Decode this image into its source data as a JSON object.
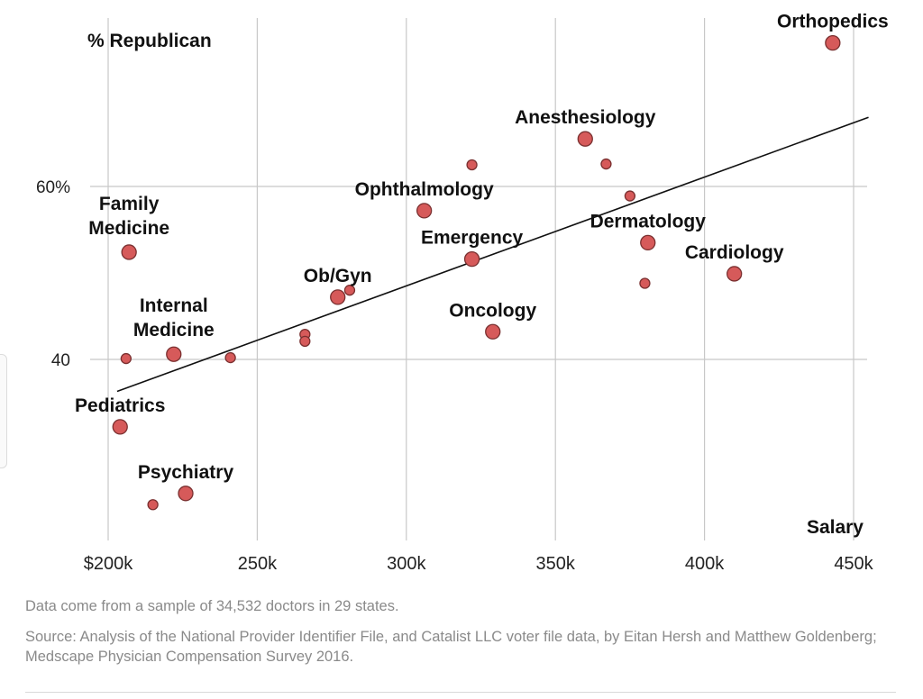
{
  "chart_data": {
    "type": "scatter",
    "title": "",
    "xlabel": "Salary",
    "ylabel": "% Republican",
    "xlim": [
      200000,
      450000
    ],
    "ylim": [
      20,
      80
    ],
    "grid": true,
    "x_ticks": [
      {
        "value": 200000,
        "label": "$200k"
      },
      {
        "value": 250000,
        "label": "250k"
      },
      {
        "value": 300000,
        "label": "300k"
      },
      {
        "value": 350000,
        "label": "350k"
      },
      {
        "value": 400000,
        "label": "400k"
      },
      {
        "value": 450000,
        "label": "450k"
      }
    ],
    "y_ticks": [
      {
        "value": 40,
        "label": "40"
      },
      {
        "value": 60,
        "label": "60%"
      }
    ],
    "trend_line": {
      "x": [
        203000,
        455000
      ],
      "y": [
        36.3,
        68.0
      ]
    },
    "points": [
      {
        "label": "Orthopedics",
        "x": 443000,
        "y": 76.6,
        "size": "large",
        "label_pos": "above"
      },
      {
        "label": "Anesthesiology",
        "x": 360000,
        "y": 65.5,
        "size": "large",
        "label_pos": "above"
      },
      {
        "label": "",
        "x": 322000,
        "y": 62.5,
        "size": "small"
      },
      {
        "label": "",
        "x": 367000,
        "y": 62.6,
        "size": "small"
      },
      {
        "label": "",
        "x": 375000,
        "y": 58.9,
        "size": "small"
      },
      {
        "label": "Ophthalmology",
        "x": 306000,
        "y": 57.2,
        "size": "large",
        "label_pos": "above"
      },
      {
        "label": "Dermatology",
        "x": 381000,
        "y": 53.5,
        "size": "large",
        "label_pos": "above"
      },
      {
        "label": "Emergency",
        "x": 322000,
        "y": 51.6,
        "size": "large",
        "label_pos": "above"
      },
      {
        "label": "Cardiology",
        "x": 410000,
        "y": 49.9,
        "size": "large",
        "label_pos": "above"
      },
      {
        "label": "",
        "x": 380000,
        "y": 48.8,
        "size": "small"
      },
      {
        "label": "",
        "x": 281000,
        "y": 48.0,
        "size": "small"
      },
      {
        "label": "Ob/Gyn",
        "x": 277000,
        "y": 47.2,
        "size": "large",
        "label_pos": "above"
      },
      {
        "label": "",
        "x": 266000,
        "y": 42.9,
        "size": "small"
      },
      {
        "label": "",
        "x": 266000,
        "y": 42.1,
        "size": "small"
      },
      {
        "label": "Oncology",
        "x": 329000,
        "y": 43.2,
        "size": "large",
        "label_pos": "above"
      },
      {
        "label": "Family Medicine",
        "x": 207000,
        "y": 52.4,
        "size": "large",
        "label_pos": "above"
      },
      {
        "label": "Internal Medicine",
        "x": 222000,
        "y": 40.6,
        "size": "large",
        "label_pos": "above"
      },
      {
        "label": "",
        "x": 206000,
        "y": 40.1,
        "size": "small"
      },
      {
        "label": "",
        "x": 241000,
        "y": 40.2,
        "size": "small"
      },
      {
        "label": "Pediatrics",
        "x": 204000,
        "y": 32.2,
        "size": "large",
        "label_pos": "above"
      },
      {
        "label": "Psychiatry",
        "x": 226000,
        "y": 24.5,
        "size": "large",
        "label_pos": "above"
      },
      {
        "label": "",
        "x": 215000,
        "y": 23.2,
        "size": "small"
      }
    ]
  },
  "notes": {
    "sample": "Data come from a sample of 34,532 doctors in 29 states.",
    "source": "Source:  Analysis of the National Provider Identifier File, and Catalist LLC voter file data, by Eitan Hersh and Matthew Goldenberg;  Medscape Physician Compensation Survey 2016."
  },
  "colors": {
    "point_fill": "#d65a5a",
    "point_stroke": "#7a3030",
    "grid": "#c8c8c8",
    "note_text": "#8a8a8a"
  }
}
